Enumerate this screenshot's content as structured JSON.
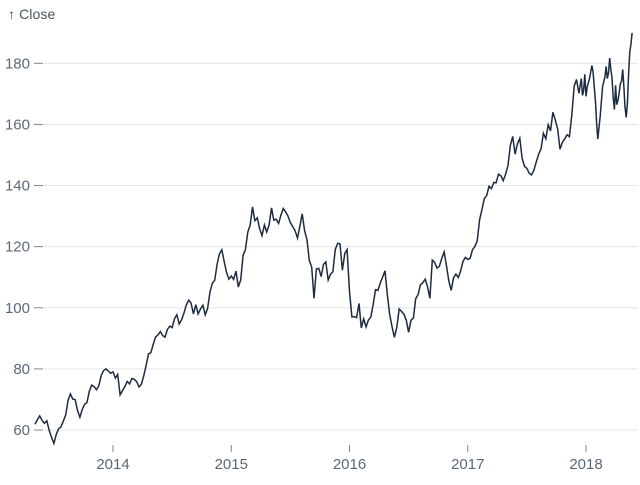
{
  "chart": {
    "y_axis_title": "↑ Close"
  },
  "colors": {
    "line": "#1d2b40",
    "grid": "#e3e6ea",
    "tick_mark": "#7a8793",
    "tick_text": "#5a6876",
    "axis_title_text": "#46535f",
    "background": "#ffffff"
  },
  "chart_data": {
    "type": "line",
    "title": "",
    "xlabel": "",
    "ylabel": "Close",
    "legend": "none",
    "grid": "horizontal",
    "x_domain": [
      2013.34,
      2018.4
    ],
    "y_domain": [
      54,
      192
    ],
    "x_ticks": [
      {
        "label": "2014",
        "value": 2014
      },
      {
        "label": "2015",
        "value": 2015
      },
      {
        "label": "2016",
        "value": 2016
      },
      {
        "label": "2017",
        "value": 2017
      },
      {
        "label": "2018",
        "value": 2018
      }
    ],
    "y_ticks": [
      60,
      80,
      100,
      120,
      140,
      160,
      180
    ],
    "series": [
      {
        "name": "Close",
        "color": "#1d2b40",
        "points": [
          [
            2013.34,
            61.9
          ],
          [
            2013.36,
            63.3
          ],
          [
            2013.38,
            64.6
          ],
          [
            2013.4,
            63.1
          ],
          [
            2013.42,
            62.2
          ],
          [
            2013.44,
            63.0
          ],
          [
            2013.46,
            60.0
          ],
          [
            2013.48,
            57.6
          ],
          [
            2013.5,
            55.6
          ],
          [
            2013.52,
            58.5
          ],
          [
            2013.54,
            60.4
          ],
          [
            2013.56,
            61.0
          ],
          [
            2013.58,
            62.9
          ],
          [
            2013.6,
            64.9
          ],
          [
            2013.62,
            69.8
          ],
          [
            2013.64,
            71.8
          ],
          [
            2013.66,
            70.1
          ],
          [
            2013.68,
            69.9
          ],
          [
            2013.7,
            66.4
          ],
          [
            2013.72,
            64.2
          ],
          [
            2013.74,
            66.8
          ],
          [
            2013.76,
            68.4
          ],
          [
            2013.78,
            69.0
          ],
          [
            2013.8,
            72.7
          ],
          [
            2013.82,
            74.7
          ],
          [
            2013.84,
            74.2
          ],
          [
            2013.86,
            73.2
          ],
          [
            2013.88,
            74.4
          ],
          [
            2013.9,
            77.8
          ],
          [
            2013.92,
            79.4
          ],
          [
            2013.94,
            80.0
          ],
          [
            2013.96,
            79.3
          ],
          [
            2013.98,
            78.6
          ],
          [
            2014.0,
            79.0
          ],
          [
            2014.02,
            77.0
          ],
          [
            2014.04,
            78.2
          ],
          [
            2014.06,
            71.5
          ],
          [
            2014.08,
            72.9
          ],
          [
            2014.1,
            74.2
          ],
          [
            2014.12,
            75.9
          ],
          [
            2014.14,
            75.1
          ],
          [
            2014.16,
            76.9
          ],
          [
            2014.18,
            76.6
          ],
          [
            2014.2,
            75.8
          ],
          [
            2014.22,
            74.1
          ],
          [
            2014.24,
            75.0
          ],
          [
            2014.26,
            77.7
          ],
          [
            2014.28,
            81.1
          ],
          [
            2014.3,
            84.9
          ],
          [
            2014.32,
            85.3
          ],
          [
            2014.34,
            88.0
          ],
          [
            2014.36,
            90.4
          ],
          [
            2014.38,
            91.1
          ],
          [
            2014.4,
            92.2
          ],
          [
            2014.42,
            90.9
          ],
          [
            2014.44,
            90.4
          ],
          [
            2014.46,
            92.9
          ],
          [
            2014.48,
            94.0
          ],
          [
            2014.5,
            93.5
          ],
          [
            2014.52,
            96.4
          ],
          [
            2014.54,
            97.7
          ],
          [
            2014.56,
            94.7
          ],
          [
            2014.58,
            96.1
          ],
          [
            2014.6,
            98.2
          ],
          [
            2014.62,
            100.9
          ],
          [
            2014.64,
            102.5
          ],
          [
            2014.66,
            101.6
          ],
          [
            2014.68,
            98.0
          ],
          [
            2014.7,
            101.0
          ],
          [
            2014.72,
            98.0
          ],
          [
            2014.74,
            99.6
          ],
          [
            2014.76,
            100.8
          ],
          [
            2014.78,
            97.7
          ],
          [
            2014.8,
            99.8
          ],
          [
            2014.82,
            105.2
          ],
          [
            2014.84,
            108.0
          ],
          [
            2014.86,
            109.0
          ],
          [
            2014.88,
            114.2
          ],
          [
            2014.9,
            117.6
          ],
          [
            2014.92,
            119.0
          ],
          [
            2014.94,
            115.1
          ],
          [
            2014.96,
            111.6
          ],
          [
            2014.98,
            109.4
          ],
          [
            2015.0,
            110.4
          ],
          [
            2015.02,
            109.3
          ],
          [
            2015.04,
            112.0
          ],
          [
            2015.06,
            106.8
          ],
          [
            2015.08,
            109.1
          ],
          [
            2015.1,
            117.2
          ],
          [
            2015.12,
            119.0
          ],
          [
            2015.14,
            124.8
          ],
          [
            2015.16,
            127.1
          ],
          [
            2015.18,
            133.0
          ],
          [
            2015.2,
            128.5
          ],
          [
            2015.22,
            129.4
          ],
          [
            2015.24,
            125.9
          ],
          [
            2015.26,
            123.6
          ],
          [
            2015.28,
            127.1
          ],
          [
            2015.3,
            124.8
          ],
          [
            2015.32,
            127.1
          ],
          [
            2015.34,
            132.7
          ],
          [
            2015.36,
            128.7
          ],
          [
            2015.38,
            129.0
          ],
          [
            2015.4,
            127.6
          ],
          [
            2015.42,
            130.3
          ],
          [
            2015.44,
            132.5
          ],
          [
            2015.46,
            131.4
          ],
          [
            2015.48,
            130.0
          ],
          [
            2015.5,
            127.8
          ],
          [
            2015.52,
            126.6
          ],
          [
            2015.54,
            125.2
          ],
          [
            2015.56,
            122.8
          ],
          [
            2015.58,
            126.5
          ],
          [
            2015.6,
            130.8
          ],
          [
            2015.62,
            125.2
          ],
          [
            2015.64,
            122.4
          ],
          [
            2015.66,
            115.5
          ],
          [
            2015.68,
            113.3
          ],
          [
            2015.7,
            103.1
          ],
          [
            2015.72,
            112.7
          ],
          [
            2015.74,
            112.9
          ],
          [
            2015.76,
            110.2
          ],
          [
            2015.78,
            114.2
          ],
          [
            2015.8,
            115.0
          ],
          [
            2015.82,
            109.1
          ],
          [
            2015.84,
            111.0
          ],
          [
            2015.86,
            111.8
          ],
          [
            2015.88,
            119.1
          ],
          [
            2015.9,
            121.1
          ],
          [
            2015.92,
            120.9
          ],
          [
            2015.94,
            112.3
          ],
          [
            2015.96,
            117.8
          ],
          [
            2015.98,
            119.0
          ],
          [
            2016.0,
            105.3
          ],
          [
            2016.02,
            97.0
          ],
          [
            2016.04,
            97.1
          ],
          [
            2016.06,
            96.8
          ],
          [
            2016.08,
            101.4
          ],
          [
            2016.1,
            93.4
          ],
          [
            2016.12,
            96.4
          ],
          [
            2016.14,
            93.7
          ],
          [
            2016.16,
            96.0
          ],
          [
            2016.18,
            96.9
          ],
          [
            2016.2,
            101.1
          ],
          [
            2016.22,
            105.9
          ],
          [
            2016.24,
            105.7
          ],
          [
            2016.26,
            108.0
          ],
          [
            2016.28,
            110.0
          ],
          [
            2016.3,
            112.1
          ],
          [
            2016.32,
            104.3
          ],
          [
            2016.34,
            97.8
          ],
          [
            2016.36,
            93.7
          ],
          [
            2016.38,
            90.3
          ],
          [
            2016.4,
            93.6
          ],
          [
            2016.42,
            99.6
          ],
          [
            2016.44,
            98.8
          ],
          [
            2016.46,
            97.9
          ],
          [
            2016.48,
            95.9
          ],
          [
            2016.5,
            92.0
          ],
          [
            2016.52,
            95.9
          ],
          [
            2016.54,
            96.7
          ],
          [
            2016.56,
            103.0
          ],
          [
            2016.58,
            104.3
          ],
          [
            2016.6,
            107.5
          ],
          [
            2016.62,
            108.2
          ],
          [
            2016.64,
            109.4
          ],
          [
            2016.66,
            106.9
          ],
          [
            2016.68,
            103.1
          ],
          [
            2016.7,
            115.6
          ],
          [
            2016.72,
            114.9
          ],
          [
            2016.74,
            113.0
          ],
          [
            2016.76,
            113.6
          ],
          [
            2016.78,
            116.1
          ],
          [
            2016.8,
            118.3
          ],
          [
            2016.82,
            113.7
          ],
          [
            2016.84,
            108.8
          ],
          [
            2016.86,
            105.7
          ],
          [
            2016.88,
            109.9
          ],
          [
            2016.9,
            111.0
          ],
          [
            2016.92,
            109.9
          ],
          [
            2016.94,
            112.1
          ],
          [
            2016.96,
            115.2
          ],
          [
            2016.98,
            116.5
          ],
          [
            2017.0,
            115.8
          ],
          [
            2017.02,
            116.2
          ],
          [
            2017.04,
            119.0
          ],
          [
            2017.06,
            120.0
          ],
          [
            2017.08,
            121.9
          ],
          [
            2017.1,
            128.8
          ],
          [
            2017.12,
            132.1
          ],
          [
            2017.14,
            135.7
          ],
          [
            2017.16,
            136.7
          ],
          [
            2017.18,
            139.8
          ],
          [
            2017.2,
            139.0
          ],
          [
            2017.22,
            141.0
          ],
          [
            2017.24,
            140.9
          ],
          [
            2017.26,
            143.7
          ],
          [
            2017.28,
            143.2
          ],
          [
            2017.3,
            141.6
          ],
          [
            2017.32,
            143.7
          ],
          [
            2017.34,
            146.6
          ],
          [
            2017.36,
            153.0
          ],
          [
            2017.38,
            156.1
          ],
          [
            2017.4,
            150.3
          ],
          [
            2017.42,
            153.6
          ],
          [
            2017.44,
            155.5
          ],
          [
            2017.46,
            149.0
          ],
          [
            2017.48,
            146.3
          ],
          [
            2017.5,
            145.6
          ],
          [
            2017.52,
            144.0
          ],
          [
            2017.54,
            143.5
          ],
          [
            2017.56,
            145.1
          ],
          [
            2017.58,
            147.8
          ],
          [
            2017.6,
            150.3
          ],
          [
            2017.62,
            152.1
          ],
          [
            2017.64,
            157.1
          ],
          [
            2017.66,
            155.3
          ],
          [
            2017.68,
            159.9
          ],
          [
            2017.7,
            157.9
          ],
          [
            2017.72,
            164.0
          ],
          [
            2017.74,
            161.5
          ],
          [
            2017.76,
            158.6
          ],
          [
            2017.78,
            151.9
          ],
          [
            2017.8,
            154.1
          ],
          [
            2017.82,
            155.3
          ],
          [
            2017.84,
            156.6
          ],
          [
            2017.86,
            156.0
          ],
          [
            2017.88,
            163.1
          ],
          [
            2017.9,
            172.5
          ],
          [
            2017.92,
            174.7
          ],
          [
            2017.94,
            170.2
          ],
          [
            2017.96,
            175.0
          ],
          [
            2017.97,
            169.5
          ],
          [
            2017.98,
            171.0
          ],
          [
            2017.99,
            176.4
          ],
          [
            2018.0,
            169.2
          ],
          [
            2018.01,
            172.3
          ],
          [
            2018.03,
            175.0
          ],
          [
            2018.05,
            179.3
          ],
          [
            2018.06,
            177.0
          ],
          [
            2018.08,
            167.4
          ],
          [
            2018.09,
            160.5
          ],
          [
            2018.1,
            155.2
          ],
          [
            2018.12,
            162.7
          ],
          [
            2018.14,
            172.4
          ],
          [
            2018.16,
            175.5
          ],
          [
            2018.17,
            179.0
          ],
          [
            2018.18,
            175.0
          ],
          [
            2018.19,
            176.9
          ],
          [
            2018.2,
            181.7
          ],
          [
            2018.21,
            178.0
          ],
          [
            2018.22,
            175.3
          ],
          [
            2018.23,
            168.8
          ],
          [
            2018.24,
            164.9
          ],
          [
            2018.25,
            172.8
          ],
          [
            2018.26,
            166.5
          ],
          [
            2018.27,
            167.8
          ],
          [
            2018.28,
            170.1
          ],
          [
            2018.29,
            173.3
          ],
          [
            2018.3,
            174.1
          ],
          [
            2018.31,
            178.0
          ],
          [
            2018.32,
            172.8
          ],
          [
            2018.33,
            165.7
          ],
          [
            2018.34,
            162.3
          ],
          [
            2018.35,
            166.9
          ],
          [
            2018.36,
            176.6
          ],
          [
            2018.37,
            183.8
          ],
          [
            2018.38,
            186.1
          ],
          [
            2018.39,
            190.0
          ]
        ]
      }
    ]
  }
}
